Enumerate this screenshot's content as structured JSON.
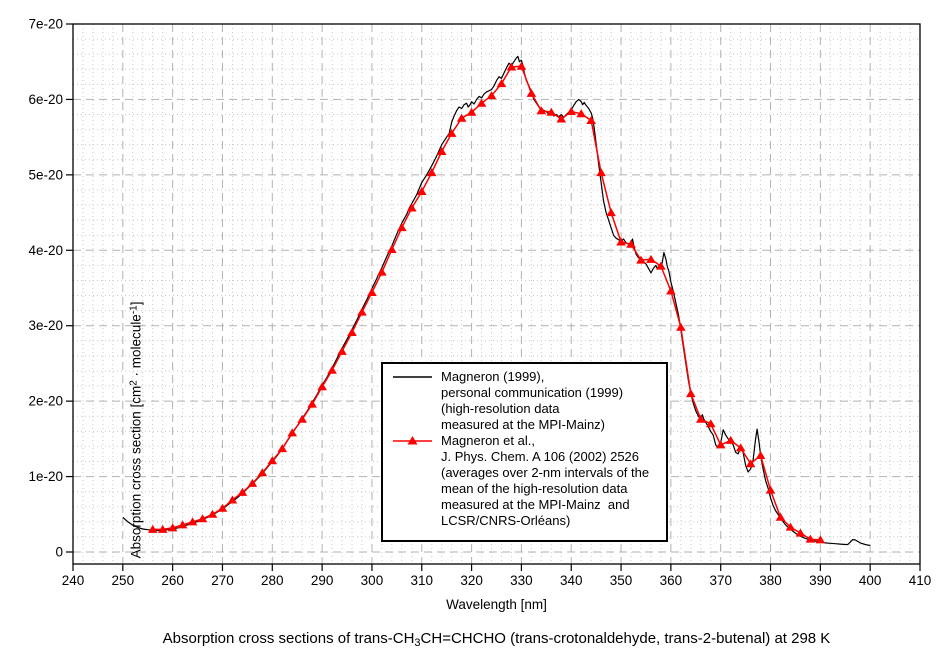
{
  "figure": {
    "caption": {
      "pre": "Absorption cross sections of trans-CH",
      "sub": "3",
      "post": "CH=CHCHO (trans-crotonaldehyde, trans-2-butenal) at 298 K"
    },
    "xlabel": "Wavelength [nm]",
    "ylabel": {
      "pre": "Absorption cross section [cm",
      "sup1": "2",
      "mid": " · molecule",
      "sup2": "-1",
      "post": "]"
    }
  },
  "legend": {
    "entries": [
      {
        "text": "Magneron (1999),\npersonal communication (1999)\n(high-resolution data\nmeasured at the MPI-Mainz)",
        "color": "#000000",
        "marker": "line"
      },
      {
        "text": "Magneron et al.,\nJ. Phys. Chem. A 106 (2002) 2526\n(averages over 2-nm intervals of the\nmean of the high-resolution data\nmeasured at the MPI-Mainz  and\nLCSR/CNRS-Orléans)",
        "color": "#ff0000",
        "marker": "line-triangle"
      }
    ]
  },
  "colors": {
    "background": "#ffffff",
    "axis": "#000000",
    "grid_major": "#b2b2b2",
    "grid_minor": "#c9c9c9",
    "series_black": "#000000",
    "series_red": "#ff0000"
  },
  "chart_data": {
    "type": "line",
    "title": "Absorption cross sections of trans-CH3CH=CHCHO (trans-crotonaldehyde, trans-2-butenal) at 298 K",
    "xlabel": "Wavelength [nm]",
    "ylabel": "Absorption cross section [cm2 · molecule-1]",
    "values_unit": "1e-20 cm2 molecule-1",
    "xlim": [
      240,
      410
    ],
    "ylim_in_1e-20": [
      -0.15,
      7.0
    ],
    "x_major_ticks": [
      240,
      250,
      260,
      270,
      280,
      290,
      300,
      310,
      320,
      330,
      340,
      350,
      360,
      370,
      380,
      390,
      400,
      410
    ],
    "x_minor_step": 2,
    "y_ticks": [
      {
        "v": 0,
        "label": "0"
      },
      {
        "v": 1,
        "label": "1e-20"
      },
      {
        "v": 2,
        "label": "2e-20"
      },
      {
        "v": 3,
        "label": "3e-20"
      },
      {
        "v": 4,
        "label": "4e-20"
      },
      {
        "v": 5,
        "label": "5e-20"
      },
      {
        "v": 6,
        "label": "6e-20"
      },
      {
        "v": 7,
        "label": "7e-20"
      }
    ],
    "y_minor_step": 0.2,
    "grid": {
      "major": "dashed",
      "minor": "dotted",
      "legend_position": "center-right"
    },
    "series": [
      {
        "name": "Magneron (1999), personal communication (1999) (high-resolution data measured at the MPI-Mainz)",
        "style": "line",
        "color": "#000000",
        "points": [
          [
            250,
            0.46
          ],
          [
            251,
            0.4
          ],
          [
            252,
            0.355
          ],
          [
            253,
            0.325
          ],
          [
            254,
            0.305
          ],
          [
            255,
            0.295
          ],
          [
            256,
            0.29
          ],
          [
            257,
            0.285
          ],
          [
            258,
            0.29
          ],
          [
            259,
            0.295
          ],
          [
            260,
            0.305
          ],
          [
            261,
            0.32
          ],
          [
            262,
            0.34
          ],
          [
            263,
            0.36
          ],
          [
            264,
            0.385
          ],
          [
            265,
            0.405
          ],
          [
            266,
            0.43
          ],
          [
            267,
            0.46
          ],
          [
            268,
            0.49
          ],
          [
            269,
            0.53
          ],
          [
            270,
            0.57
          ],
          [
            271,
            0.62
          ],
          [
            272,
            0.67
          ],
          [
            273,
            0.72
          ],
          [
            274,
            0.78
          ],
          [
            275,
            0.84
          ],
          [
            276,
            0.9
          ],
          [
            277,
            0.97
          ],
          [
            278,
            1.04
          ],
          [
            279,
            1.12
          ],
          [
            280,
            1.2
          ],
          [
            281,
            1.28
          ],
          [
            282,
            1.37
          ],
          [
            283,
            1.47
          ],
          [
            284,
            1.57
          ],
          [
            285,
            1.67
          ],
          [
            286,
            1.77
          ],
          [
            287,
            1.87
          ],
          [
            288,
            1.98
          ],
          [
            289,
            2.09
          ],
          [
            290,
            2.21
          ],
          [
            291,
            2.32
          ],
          [
            292,
            2.44
          ],
          [
            293,
            2.57
          ],
          [
            294,
            2.7
          ],
          [
            295,
            2.82
          ],
          [
            296,
            2.95
          ],
          [
            297,
            3.08
          ],
          [
            298,
            3.22
          ],
          [
            299,
            3.35
          ],
          [
            300,
            3.49
          ],
          [
            301,
            3.63
          ],
          [
            302,
            3.77
          ],
          [
            303,
            3.92
          ],
          [
            304,
            4.06
          ],
          [
            305,
            4.22
          ],
          [
            306,
            4.36
          ],
          [
            307,
            4.48
          ],
          [
            307.5,
            4.56
          ],
          [
            308,
            4.62
          ],
          [
            309,
            4.74
          ],
          [
            310,
            4.9
          ],
          [
            310.5,
            4.95
          ],
          [
            311,
            5.0
          ],
          [
            312,
            5.12
          ],
          [
            313,
            5.25
          ],
          [
            314,
            5.4
          ],
          [
            315,
            5.5
          ],
          [
            315.5,
            5.55
          ],
          [
            316,
            5.7
          ],
          [
            316.5,
            5.78
          ],
          [
            317,
            5.85
          ],
          [
            317.5,
            5.9
          ],
          [
            318,
            5.88
          ],
          [
            318.5,
            5.93
          ],
          [
            319,
            5.95
          ],
          [
            319.3,
            5.9
          ],
          [
            319.7,
            5.93
          ],
          [
            320,
            5.97
          ],
          [
            320.5,
            5.94
          ],
          [
            321,
            6.0
          ],
          [
            321.5,
            6.04
          ],
          [
            322,
            6.02
          ],
          [
            322.5,
            6.07
          ],
          [
            323,
            6.1
          ],
          [
            324,
            6.13
          ],
          [
            324.5,
            6.18
          ],
          [
            325,
            6.25
          ],
          [
            325.5,
            6.3
          ],
          [
            326,
            6.28
          ],
          [
            326.5,
            6.35
          ],
          [
            327,
            6.42
          ],
          [
            327.5,
            6.48
          ],
          [
            328,
            6.45
          ],
          [
            328.5,
            6.5
          ],
          [
            329,
            6.55
          ],
          [
            329.3,
            6.57
          ],
          [
            329.6,
            6.5
          ],
          [
            330,
            6.52
          ],
          [
            330.3,
            6.45
          ],
          [
            330.6,
            6.35
          ],
          [
            331,
            6.25
          ],
          [
            331.5,
            6.18
          ],
          [
            332,
            6.1
          ],
          [
            332.5,
            6.0
          ],
          [
            333,
            5.95
          ],
          [
            333.5,
            5.9
          ],
          [
            334,
            5.87
          ],
          [
            335,
            5.84
          ],
          [
            335.5,
            5.8
          ],
          [
            336,
            5.82
          ],
          [
            336.5,
            5.78
          ],
          [
            337,
            5.8
          ],
          [
            337.5,
            5.77
          ],
          [
            338,
            5.8
          ],
          [
            338.5,
            5.76
          ],
          [
            339,
            5.8
          ],
          [
            339.5,
            5.83
          ],
          [
            340,
            5.86
          ],
          [
            340.5,
            5.92
          ],
          [
            341,
            5.97
          ],
          [
            341.5,
            6.0
          ],
          [
            342,
            5.97
          ],
          [
            342.3,
            5.93
          ],
          [
            342.6,
            5.96
          ],
          [
            343,
            5.92
          ],
          [
            343.5,
            5.88
          ],
          [
            344,
            5.82
          ],
          [
            344.3,
            5.75
          ],
          [
            344.6,
            5.62
          ],
          [
            345,
            5.42
          ],
          [
            345.5,
            5.15
          ],
          [
            346,
            4.9
          ],
          [
            346.5,
            4.65
          ],
          [
            347,
            4.5
          ],
          [
            347.5,
            4.4
          ],
          [
            348,
            4.3
          ],
          [
            348.5,
            4.2
          ],
          [
            349,
            4.16
          ],
          [
            350,
            4.12
          ],
          [
            350.5,
            4.15
          ],
          [
            351,
            4.1
          ],
          [
            351.5,
            4.08
          ],
          [
            352,
            4.1
          ],
          [
            352.3,
            4.15
          ],
          [
            352.6,
            4.05
          ],
          [
            353,
            3.95
          ],
          [
            353.5,
            3.9
          ],
          [
            354,
            3.88
          ],
          [
            354.5,
            3.84
          ],
          [
            355,
            3.82
          ],
          [
            355.5,
            3.76
          ],
          [
            356,
            3.7
          ],
          [
            356.5,
            3.76
          ],
          [
            357,
            3.8
          ],
          [
            357.3,
            3.75
          ],
          [
            357.6,
            3.8
          ],
          [
            358,
            3.76
          ],
          [
            358.3,
            3.85
          ],
          [
            358.6,
            3.97
          ],
          [
            359,
            3.88
          ],
          [
            359.3,
            3.78
          ],
          [
            359.6,
            3.72
          ],
          [
            360,
            3.58
          ],
          [
            360.5,
            3.45
          ],
          [
            361,
            3.3
          ],
          [
            361.5,
            3.15
          ],
          [
            362,
            2.95
          ],
          [
            362.5,
            2.72
          ],
          [
            363,
            2.5
          ],
          [
            363.5,
            2.28
          ],
          [
            364,
            2.1
          ],
          [
            364.5,
            1.97
          ],
          [
            365,
            1.87
          ],
          [
            365.5,
            1.8
          ],
          [
            366,
            1.76
          ],
          [
            366.3,
            1.82
          ],
          [
            366.6,
            1.76
          ],
          [
            367,
            1.72
          ],
          [
            367.5,
            1.66
          ],
          [
            368,
            1.6
          ],
          [
            368.5,
            1.55
          ],
          [
            369,
            1.42
          ],
          [
            369.5,
            1.38
          ],
          [
            370,
            1.45
          ],
          [
            370.5,
            1.62
          ],
          [
            371,
            1.55
          ],
          [
            371.5,
            1.5
          ],
          [
            372,
            1.48
          ],
          [
            372.5,
            1.42
          ],
          [
            373,
            1.32
          ],
          [
            373.5,
            1.3
          ],
          [
            374,
            1.38
          ],
          [
            374.5,
            1.32
          ],
          [
            375,
            1.15
          ],
          [
            375.5,
            1.06
          ],
          [
            376,
            1.1
          ],
          [
            376.5,
            1.22
          ],
          [
            377,
            1.5
          ],
          [
            377.3,
            1.63
          ],
          [
            377.7,
            1.45
          ],
          [
            378,
            1.28
          ],
          [
            378.5,
            1.1
          ],
          [
            379,
            0.95
          ],
          [
            379.5,
            0.85
          ],
          [
            380,
            0.72
          ],
          [
            380.5,
            0.62
          ],
          [
            381,
            0.55
          ],
          [
            381.5,
            0.5
          ],
          [
            382,
            0.45
          ],
          [
            383,
            0.36
          ],
          [
            384,
            0.3
          ],
          [
            385,
            0.25
          ],
          [
            386,
            0.21
          ],
          [
            387,
            0.18
          ],
          [
            388,
            0.16
          ],
          [
            389,
            0.145
          ],
          [
            390,
            0.135
          ],
          [
            391,
            0.12
          ],
          [
            392,
            0.115
          ],
          [
            393,
            0.11
          ],
          [
            394,
            0.105
          ],
          [
            395,
            0.1
          ],
          [
            395.5,
            0.1
          ],
          [
            396,
            0.13
          ],
          [
            396.5,
            0.165
          ],
          [
            397,
            0.16
          ],
          [
            397.5,
            0.14
          ],
          [
            398,
            0.12
          ],
          [
            399,
            0.1
          ],
          [
            400,
            0.085
          ]
        ]
      },
      {
        "name": "Magneron et al., J. Phys. Chem. A 106 (2002) 2526 (averages over 2-nm intervals)",
        "style": "line+triangle",
        "color": "#ff0000",
        "x": [
          256,
          258,
          260,
          262,
          264,
          266,
          268,
          270,
          272,
          274,
          276,
          278,
          280,
          282,
          284,
          286,
          288,
          290,
          292,
          294,
          296,
          298,
          300,
          302,
          304,
          306,
          308,
          310,
          312,
          314,
          316,
          318,
          320,
          322,
          324,
          326,
          328,
          330,
          332,
          334,
          336,
          338,
          340,
          342,
          344,
          346,
          348,
          350,
          352,
          354,
          356,
          358,
          360,
          362,
          364,
          366,
          368,
          370,
          372,
          374,
          376,
          378,
          380,
          382,
          384,
          386,
          388,
          390
        ],
        "values": [
          0.3,
          0.3,
          0.32,
          0.36,
          0.4,
          0.44,
          0.5,
          0.58,
          0.69,
          0.79,
          0.91,
          1.05,
          1.21,
          1.37,
          1.58,
          1.76,
          1.96,
          2.19,
          2.41,
          2.66,
          2.91,
          3.18,
          3.44,
          3.71,
          4.01,
          4.3,
          4.56,
          4.78,
          5.03,
          5.31,
          5.55,
          5.75,
          5.83,
          5.95,
          6.05,
          6.21,
          6.43,
          6.44,
          6.08,
          5.85,
          5.83,
          5.74,
          5.84,
          5.81,
          5.72,
          5.03,
          4.5,
          4.11,
          4.08,
          3.87,
          3.88,
          3.79,
          3.46,
          2.98,
          2.1,
          1.76,
          1.7,
          1.42,
          1.48,
          1.38,
          1.17,
          1.28,
          0.82,
          0.46,
          0.33,
          0.25,
          0.17,
          0.16
        ]
      }
    ]
  }
}
